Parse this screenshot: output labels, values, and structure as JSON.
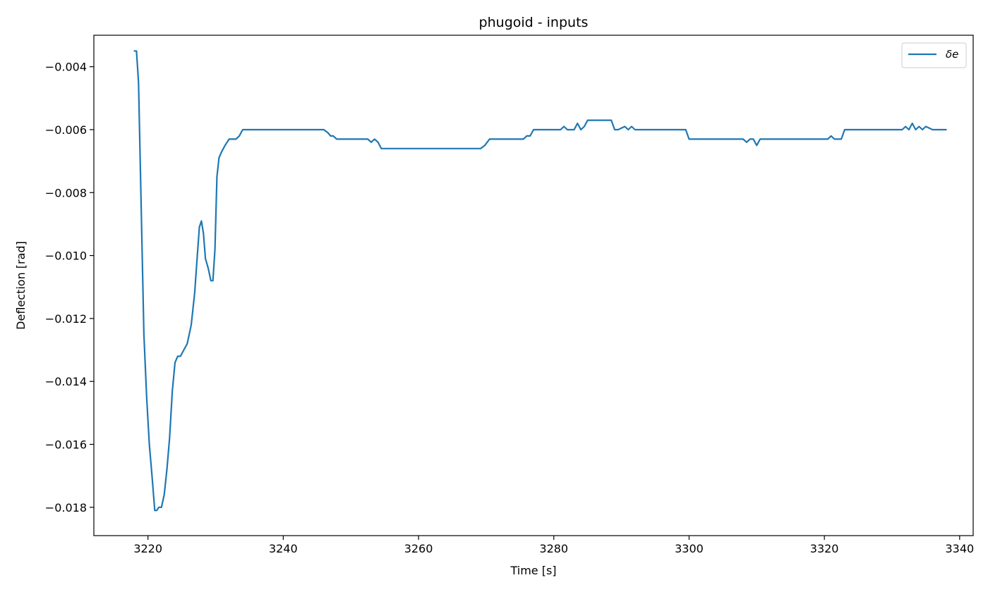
{
  "chart_data": {
    "type": "line",
    "title": "phugoid - inputs",
    "xlabel": "Time [s]",
    "ylabel": "Deflection [rad]",
    "xlim": [
      3212,
      3342
    ],
    "ylim": [
      -0.0189,
      -0.003
    ],
    "xticks": [
      3220,
      3240,
      3260,
      3280,
      3300,
      3320,
      3340
    ],
    "xtick_labels": [
      "3220",
      "3240",
      "3260",
      "3280",
      "3300",
      "3320",
      "3340"
    ],
    "yticks": [
      -0.004,
      -0.006,
      -0.008,
      -0.01,
      -0.012,
      -0.014,
      -0.016,
      -0.018
    ],
    "ytick_labels": [
      "−0.004",
      "−0.006",
      "−0.008",
      "−0.010",
      "−0.012",
      "−0.014",
      "−0.016",
      "−0.018"
    ],
    "grid": false,
    "legend": {
      "position": "top-right",
      "entries": [
        "δe"
      ]
    },
    "colors": {
      "series": "#1f77b4",
      "axes": "#000000"
    },
    "series": [
      {
        "name": "δe",
        "x": [
          3218.0,
          3218.3,
          3218.6,
          3219.0,
          3219.4,
          3219.8,
          3220.2,
          3220.6,
          3221.0,
          3221.3,
          3221.6,
          3222.0,
          3222.4,
          3222.8,
          3223.2,
          3223.6,
          3224.0,
          3224.4,
          3224.8,
          3225.3,
          3225.8,
          3226.4,
          3226.9,
          3227.3,
          3227.6,
          3227.9,
          3228.2,
          3228.5,
          3228.9,
          3229.3,
          3229.6,
          3229.9,
          3230.2,
          3230.5,
          3230.9,
          3231.4,
          3232.0,
          3232.5,
          3233.0,
          3233.5,
          3234.0,
          3234.5,
          3236.0,
          3240.0,
          3246.0,
          3246.6,
          3247.0,
          3247.4,
          3247.9,
          3252.0,
          3252.5,
          3253.0,
          3253.5,
          3254.0,
          3254.5,
          3255.0,
          3255.5,
          3260.0,
          3265.0,
          3268.5,
          3269.2,
          3269.8,
          3270.5,
          3275.0,
          3275.5,
          3276.0,
          3276.5,
          3277.0,
          3277.5,
          3280.0,
          3281.0,
          3281.5,
          3282.0,
          3283.0,
          3283.5,
          3284.0,
          3284.5,
          3285.0,
          3287.0,
          3288.0,
          3288.5,
          3289.0,
          3289.5,
          3290.5,
          3291.0,
          3291.5,
          3292.0,
          3292.5,
          3295.0,
          3298.0,
          3299.0,
          3299.5,
          3300.0,
          3300.5,
          3301.0,
          3305.0,
          3307.5,
          3308.0,
          3308.5,
          3309.0,
          3309.5,
          3310.0,
          3310.5,
          3311.0,
          3315.0,
          3320.0,
          3320.5,
          3321.0,
          3321.5,
          3322.5,
          3323.0,
          3323.5,
          3325.0,
          3330.0,
          3331.0,
          3331.5,
          3332.0,
          3332.5,
          3333.0,
          3333.5,
          3334.0,
          3334.5,
          3335.0,
          3336.0,
          3337.0,
          3337.5,
          3338.0
        ],
        "y": [
          -0.0035,
          -0.0035,
          -0.0045,
          -0.0085,
          -0.0125,
          -0.0145,
          -0.016,
          -0.017,
          -0.0181,
          -0.0181,
          -0.018,
          -0.018,
          -0.0176,
          -0.0168,
          -0.0158,
          -0.0143,
          -0.0134,
          -0.0132,
          -0.0132,
          -0.013,
          -0.0128,
          -0.0122,
          -0.0112,
          -0.01,
          -0.0091,
          -0.0089,
          -0.0093,
          -0.0101,
          -0.0104,
          -0.0108,
          -0.0108,
          -0.0098,
          -0.0075,
          -0.0069,
          -0.0067,
          -0.0065,
          -0.0063,
          -0.0063,
          -0.0063,
          -0.0062,
          -0.006,
          -0.006,
          -0.006,
          -0.006,
          -0.006,
          -0.0061,
          -0.0062,
          -0.0062,
          -0.0063,
          -0.0063,
          -0.0063,
          -0.0064,
          -0.0063,
          -0.0064,
          -0.0066,
          -0.0066,
          -0.0066,
          -0.0066,
          -0.0066,
          -0.0066,
          -0.0066,
          -0.0065,
          -0.0063,
          -0.0063,
          -0.0063,
          -0.0062,
          -0.0062,
          -0.006,
          -0.006,
          -0.006,
          -0.006,
          -0.0059,
          -0.006,
          -0.006,
          -0.0058,
          -0.006,
          -0.0059,
          -0.0057,
          -0.0057,
          -0.0057,
          -0.0057,
          -0.006,
          -0.006,
          -0.0059,
          -0.006,
          -0.0059,
          -0.006,
          -0.006,
          -0.006,
          -0.006,
          -0.006,
          -0.006,
          -0.0063,
          -0.0063,
          -0.0063,
          -0.0063,
          -0.0063,
          -0.0063,
          -0.0064,
          -0.0063,
          -0.0063,
          -0.0065,
          -0.0063,
          -0.0063,
          -0.0063,
          -0.0063,
          -0.0063,
          -0.0062,
          -0.0063,
          -0.0063,
          -0.006,
          -0.006,
          -0.006,
          -0.006,
          -0.006,
          -0.006,
          -0.0059,
          -0.006,
          -0.0058,
          -0.006,
          -0.0059,
          -0.006,
          -0.0059,
          -0.006,
          -0.006,
          -0.006,
          -0.006
        ]
      }
    ]
  }
}
